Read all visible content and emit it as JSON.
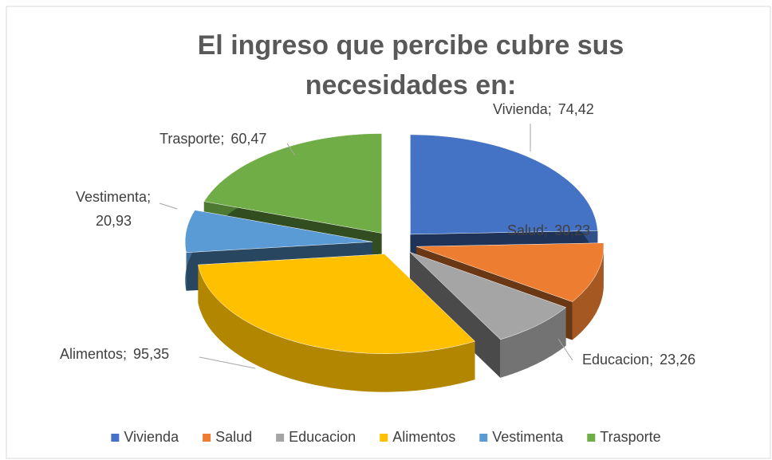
{
  "chart_data": {
    "type": "pie3d",
    "title": "El ingreso que percibe cubre sus necesidades en:",
    "categories": [
      "Vivienda",
      "Salud",
      "Educacion",
      "Alimentos",
      "Vestimenta",
      "Trasporte"
    ],
    "values": [
      74.42,
      30.23,
      23.26,
      95.35,
      20.93,
      60.47
    ],
    "value_labels": [
      "74,42",
      "30,23",
      "23,26",
      "95,35",
      "20,93",
      "60,47"
    ],
    "label_separator": ";",
    "colors": [
      "#4472c4",
      "#ed7d31",
      "#a5a5a5",
      "#ffc000",
      "#5b9bd5",
      "#70ad47"
    ],
    "legend": "bottom"
  }
}
